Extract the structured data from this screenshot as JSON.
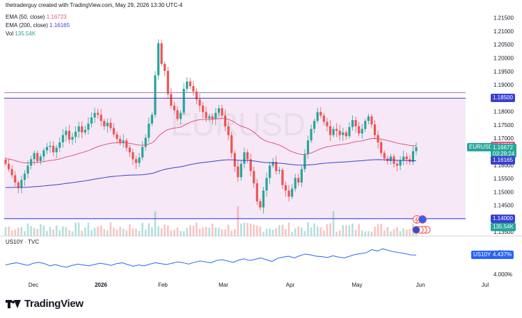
{
  "header": {
    "attribution": "thetraderguy created with TradingView.com, May 29, 2026 13:30 UTC-4",
    "ema50_label": "EMA (50, close)",
    "ema50_value": "1.16723",
    "ema200_label": "EMA (200, close)",
    "ema200_value": "1.16165",
    "vol_label": "Vol",
    "vol_value": "135.54K"
  },
  "watermark": "EURUSD",
  "colors": {
    "up": "#26a69a",
    "down": "#ef5350",
    "ema50": "#e0557f",
    "ema200": "#3a3fd1",
    "band": "#f6e8f6",
    "sub_line": "#2962ff"
  },
  "tags": {
    "upper_level": "1.18500",
    "ema50": "1.16723",
    "symbol": "EURUSD",
    "price": "1.16672",
    "countdown": "03:29:24",
    "ema200": "1.16165",
    "lower_level": "1.14000",
    "volume": "135.54K",
    "us10y_symbol": "US10Y",
    "us10y_value": "4.437%"
  },
  "subpane": {
    "title": "US10Y · TVC"
  },
  "brand": {
    "name": "TradingView"
  },
  "chart_data": {
    "type": "candlestick",
    "symbol": "EURUSD",
    "timeframe": "Daily",
    "x_ticks": [
      "Dec",
      "2026",
      "Feb",
      "Mar",
      "Apr",
      "May",
      "Jun",
      "Jul"
    ],
    "y_ticks": [
      1.215,
      1.21,
      1.205,
      1.2,
      1.195,
      1.19,
      1.185,
      1.18,
      1.175,
      1.17,
      1.165,
      1.16,
      1.155,
      1.15,
      1.145,
      1.14,
      1.135
    ],
    "ylim": [
      1.1335,
      1.2175
    ],
    "horizontal_levels": [
      1.185,
      1.14
    ],
    "shaded_band": [
      1.14,
      1.185
    ],
    "last_close": 1.16672,
    "ema50_last": 1.16723,
    "ema200_last": 1.16165,
    "volume_last": "135.54K",
    "close_series": [
      1.1605,
      1.1585,
      1.1562,
      1.1535,
      1.1515,
      1.1545,
      1.1568,
      1.1598,
      1.1622,
      1.1645,
      1.1615,
      1.1632,
      1.1655,
      1.1668,
      1.1672,
      1.1648,
      1.1665,
      1.1685,
      1.1712,
      1.1728,
      1.1695,
      1.1705,
      1.1725,
      1.1745,
      1.1722,
      1.1732,
      1.1755,
      1.1778,
      1.1795,
      1.1788,
      1.1765,
      1.1745,
      1.1758,
      1.1738,
      1.1715,
      1.1698,
      1.1682,
      1.1692,
      1.1665,
      1.1648,
      1.1622,
      1.1608,
      1.1628,
      1.1668,
      1.1702,
      1.1755,
      1.1788,
      1.1935,
      1.2055,
      1.1978,
      1.1952,
      1.1865,
      1.1822,
      1.1805,
      1.1772,
      1.1795,
      1.1885,
      1.1912,
      1.1895,
      1.1875,
      1.1845,
      1.1822,
      1.1798,
      1.1775,
      1.1782,
      1.1772,
      1.1795,
      1.1812,
      1.1785,
      1.1745,
      1.1712,
      1.1645,
      1.1595,
      1.1555,
      1.1605,
      1.1648,
      1.1622,
      1.1578,
      1.1532,
      1.1465,
      1.1442,
      1.1505,
      1.1552,
      1.1598,
      1.1612,
      1.1578,
      1.1582,
      1.1525,
      1.1505,
      1.1482,
      1.1512,
      1.1552,
      1.1535,
      1.1585,
      1.1642,
      1.1692,
      1.1735,
      1.1765,
      1.1798,
      1.1785,
      1.1762,
      1.1745,
      1.1712,
      1.1735,
      1.1728,
      1.1712,
      1.1722,
      1.1708,
      1.1742,
      1.1768,
      1.1745,
      1.1718,
      1.1735,
      1.1765,
      1.1782,
      1.1752,
      1.1712,
      1.1685,
      1.1645,
      1.1625,
      1.1615,
      1.1632,
      1.1605,
      1.1598,
      1.1618,
      1.1632,
      1.1622,
      1.1612,
      1.1652,
      1.16672
    ],
    "us10y": {
      "name": "US10Y",
      "last": 4.437,
      "y_ticks": [
        "4.500%",
        "4.000%"
      ],
      "values": [
        4.21,
        4.24,
        4.26,
        4.23,
        4.2,
        4.25,
        4.27,
        4.24,
        4.19,
        4.22,
        4.18,
        4.16,
        4.2,
        4.23,
        4.21,
        4.19,
        4.22,
        4.25,
        4.23,
        4.2,
        4.24,
        4.26,
        4.22,
        4.18,
        4.21,
        4.19,
        4.23,
        4.26,
        4.24,
        4.22,
        4.25,
        4.28,
        4.26,
        4.23,
        4.27,
        4.3,
        4.28,
        4.26,
        4.31,
        4.33,
        4.3,
        4.27,
        4.32,
        4.35,
        4.31,
        4.34,
        4.37,
        4.33,
        4.29,
        4.36,
        4.39,
        4.41,
        4.37,
        4.42,
        4.46,
        4.44,
        4.41,
        4.4,
        4.38,
        4.42,
        4.39,
        4.37,
        4.41,
        4.45,
        4.47,
        4.49,
        4.56,
        4.53,
        4.58,
        4.54,
        4.51,
        4.49,
        4.47,
        4.44,
        4.437
      ]
    }
  }
}
